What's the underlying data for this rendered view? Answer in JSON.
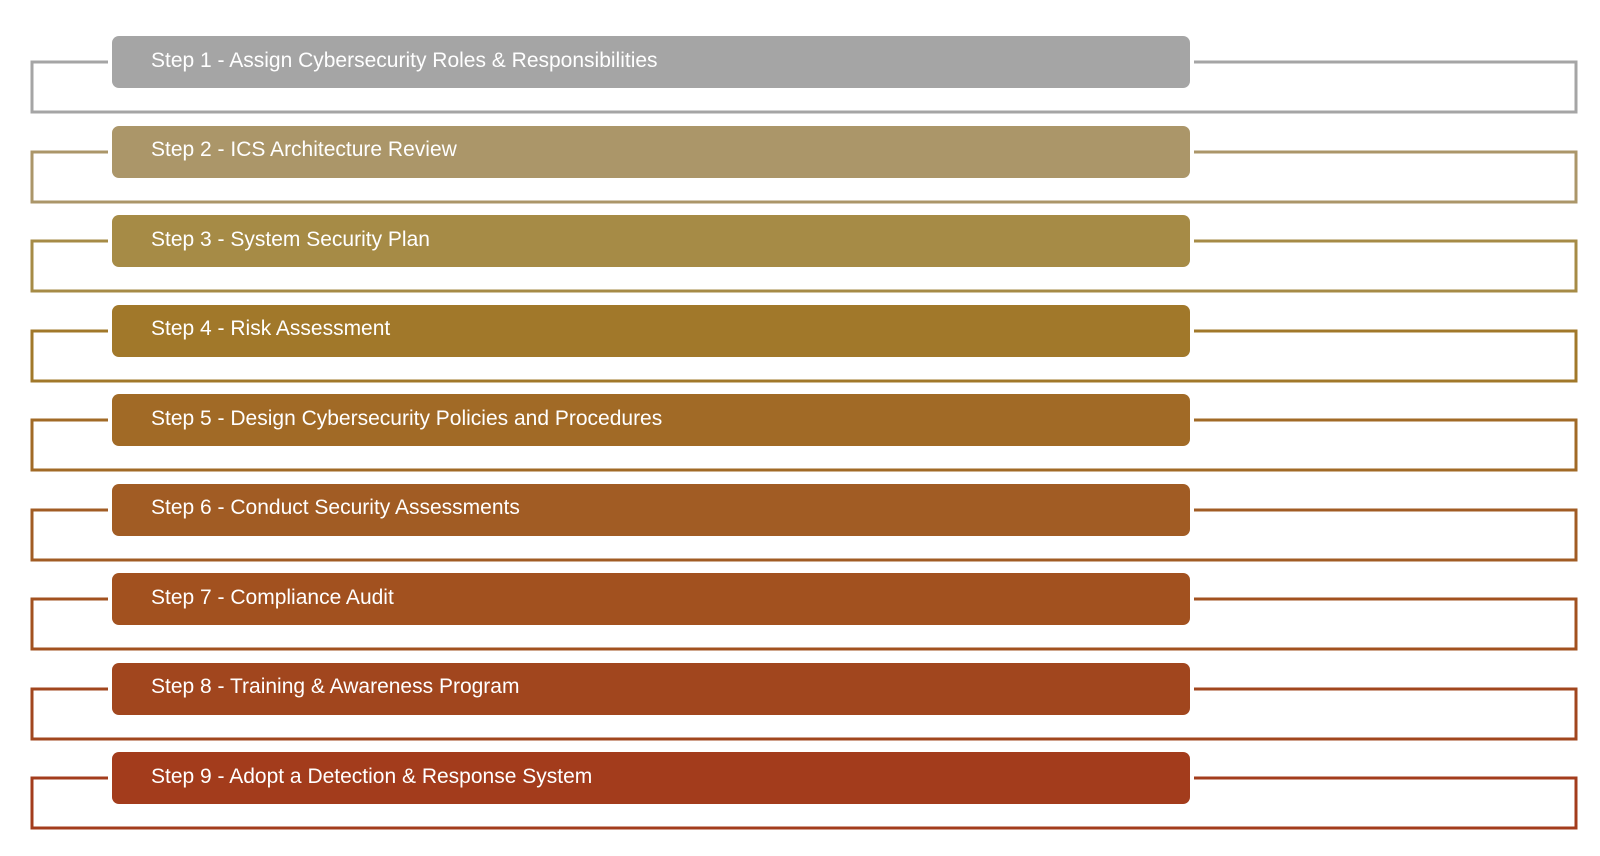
{
  "steps": [
    {
      "label": "Step 1 - Assign Cybersecurity Roles & Responsibilities",
      "color": "#a5a5a5"
    },
    {
      "label": "Step 2 - ICS Architecture Review",
      "color": "#ab9669"
    },
    {
      "label": "Step 3 - System Security Plan",
      "color": "#a68b46"
    },
    {
      "label": "Step 4 - Risk Assessment",
      "color": "#a1782a"
    },
    {
      "label": "Step 5 - Design Cybersecurity Policies and Procedures",
      "color": "#a16a26"
    },
    {
      "label": "Step 6 - Conduct Security Assessments",
      "color": "#a15c24"
    },
    {
      "label": "Step 7 - Compliance Audit",
      "color": "#a2511f"
    },
    {
      "label": "Step 8 - Training & Awareness Program",
      "color": "#a1461e"
    },
    {
      "label": "Step 9 - Adopt a Detection & Response System",
      "color": "#a33c1c"
    }
  ]
}
